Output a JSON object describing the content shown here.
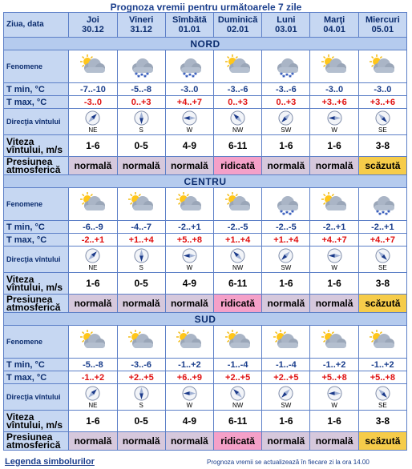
{
  "title": "Prognoza vremii pentru următoarele 7 zile",
  "header_label": "Ziua, data",
  "days": [
    {
      "name": "Joi",
      "date": "30.12"
    },
    {
      "name": "Vineri",
      "date": "31.12"
    },
    {
      "name": "Sîmbătă",
      "date": "01.01"
    },
    {
      "name": "Duminică",
      "date": "02.01"
    },
    {
      "name": "Luni",
      "date": "03.01"
    },
    {
      "name": "Marţi",
      "date": "04.01"
    },
    {
      "name": "Miercuri",
      "date": "05.01"
    }
  ],
  "labels": {
    "phenomena": "Fenomene",
    "tmin": "T min, °C",
    "tmax": "T max, °C",
    "direction": "Direcţia vîntului",
    "speed": "Viteza vîntului, m/s",
    "pressure": "Presiunea atmosferică"
  },
  "regions": [
    {
      "name": "NORD",
      "icons": [
        "cloud-sun",
        "cloud-snow",
        "cloud-snow",
        "cloud-sun",
        "cloud-snow",
        "cloud-sun",
        "cloud-sun"
      ],
      "tmin": [
        "-7..-10",
        "-5..-8",
        "-3..0",
        "-3..-6",
        "-3..-6",
        "-3..0",
        "-3..0"
      ],
      "tmax": [
        "-3..0",
        "0..+3",
        "+4..+7",
        "0..+3",
        "0..+3",
        "+3..+6",
        "+3..+6"
      ],
      "wind_dir": [
        "NE",
        "S",
        "W",
        "NW",
        "SW",
        "W",
        "SE"
      ],
      "wind_speed": [
        "1-6",
        "0-5",
        "4-9",
        "6-11",
        "1-6",
        "1-6",
        "3-8"
      ],
      "pressure": [
        "normală",
        "normală",
        "normală",
        "ridicată",
        "normală",
        "normală",
        "scăzută"
      ],
      "pressure_kind": [
        "normal",
        "normal",
        "normal",
        "high",
        "normal",
        "normal",
        "low"
      ]
    },
    {
      "name": "CENTRU",
      "icons": [
        "cloud-sun",
        "cloud-sun",
        "cloud-sun",
        "cloud-sun",
        "cloud-snow",
        "cloud-sun",
        "cloud-snow"
      ],
      "tmin": [
        "-6..-9",
        "-4..-7",
        "-2..+1",
        "-2..-5",
        "-2..-5",
        "-2..+1",
        "-2..+1"
      ],
      "tmax": [
        "-2..+1",
        "+1..+4",
        "+5..+8",
        "+1..+4",
        "+1..+4",
        "+4..+7",
        "+4..+7"
      ],
      "wind_dir": [
        "NE",
        "S",
        "W",
        "NW",
        "SW",
        "W",
        "SE"
      ],
      "wind_speed": [
        "1-6",
        "0-5",
        "4-9",
        "6-11",
        "1-6",
        "1-6",
        "3-8"
      ],
      "pressure": [
        "normală",
        "normală",
        "normală",
        "ridicată",
        "normală",
        "normală",
        "scăzută"
      ],
      "pressure_kind": [
        "normal",
        "normal",
        "normal",
        "high",
        "normal",
        "normal",
        "low"
      ]
    },
    {
      "name": "SUD",
      "icons": [
        "cloud-sun",
        "cloud-sun",
        "cloud-sun",
        "cloud-sun",
        "cloud-sun",
        "cloud-sun",
        "cloud-sun"
      ],
      "tmin": [
        "-5..-8",
        "-3..-6",
        "-1..+2",
        "-1..-4",
        "-1..-4",
        "-1..+2",
        "-1..+2"
      ],
      "tmax": [
        "-1..+2",
        "+2..+5",
        "+6..+9",
        "+2..+5",
        "+2..+5",
        "+5..+8",
        "+5..+8"
      ],
      "wind_dir": [
        "NE",
        "S",
        "W",
        "NW",
        "SW",
        "W",
        "SE"
      ],
      "wind_speed": [
        "1-6",
        "0-5",
        "4-9",
        "6-11",
        "1-6",
        "1-6",
        "3-8"
      ],
      "pressure": [
        "normală",
        "normală",
        "normală",
        "ridicată",
        "normală",
        "normală",
        "scăzută"
      ],
      "pressure_kind": [
        "normal",
        "normal",
        "normal",
        "high",
        "normal",
        "normal",
        "low"
      ]
    }
  ],
  "legend_link": "Legenda simbolurilor",
  "update_note": "Prognoza vremii se actualizează în fiecare zi la ora 14.00",
  "colors": {
    "header_bg": "#c6d7f2",
    "region_bg": "#b5cbee",
    "border": "#5c7fc7",
    "tmin_text": "#1a3e8c",
    "tmax_text": "#e01010",
    "pressure_normal": "#d6c8dc",
    "pressure_high": "#f4a0c8",
    "pressure_low": "#f6cc4a"
  }
}
